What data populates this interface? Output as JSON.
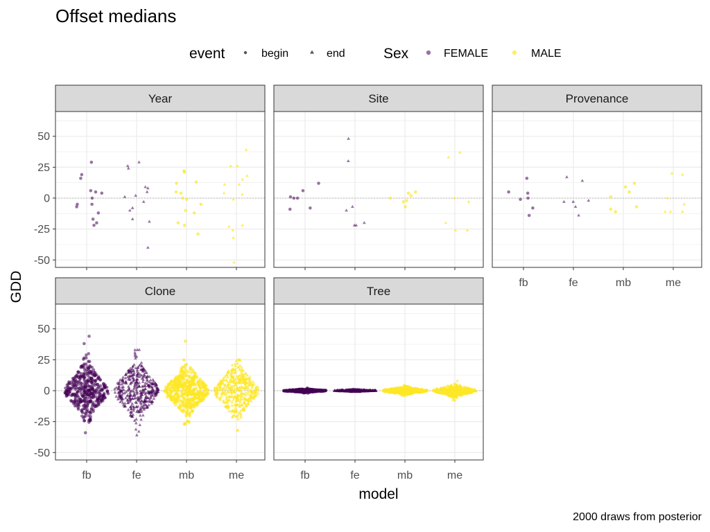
{
  "chart_data": {
    "type": "scatter",
    "title": "Offset medians",
    "xlabel": "model",
    "ylabel": "GDD",
    "caption": "2000 draws from posterior",
    "ylim": [
      -56,
      70
    ],
    "yticks": [
      -50,
      -25,
      0,
      25,
      50
    ],
    "yticklabels": [
      "-50",
      "-25",
      "0",
      "25",
      "50"
    ],
    "categories": [
      "fb",
      "fe",
      "mb",
      "me"
    ],
    "grid": true,
    "zero_line": "dotted",
    "legend": {
      "placement": "top",
      "event_title": "event",
      "event_items": [
        {
          "label": "begin",
          "shape": "circle"
        },
        {
          "label": "end",
          "shape": "triangle"
        }
      ],
      "sex_title": "Sex",
      "sex_items": [
        {
          "label": "FEMALE",
          "color": "#440154"
        },
        {
          "label": "MALE",
          "color": "#FDE725"
        }
      ]
    },
    "colors": {
      "FEMALE": "#440154",
      "MALE": "#FDE725"
    },
    "panels": [
      {
        "name": "Year",
        "values": {
          "fb": [
            29,
            16,
            6,
            4,
            0,
            -5,
            -7,
            -12,
            -17,
            -20,
            -22,
            19,
            5,
            -5
          ],
          "fe": [
            29,
            24,
            26,
            9,
            8,
            5,
            1,
            2,
            -3,
            -8,
            -10,
            -17,
            -19,
            -40
          ],
          "mb": [
            22,
            21,
            13,
            12,
            5,
            4,
            0,
            -1,
            -5,
            -10,
            -12,
            -20,
            -22,
            -29
          ],
          "me": [
            39,
            26,
            26,
            18,
            15,
            11,
            11,
            4,
            3,
            -1,
            -22,
            -23,
            -26,
            -32,
            -52
          ]
        }
      },
      {
        "name": "Site",
        "values": {
          "fb": [
            12,
            6,
            1,
            0,
            0,
            -8,
            -9
          ],
          "fe": [
            48,
            30,
            -7,
            -10,
            -20,
            -22,
            -22
          ],
          "mb": [
            5,
            4,
            2,
            0,
            -2,
            -3,
            -7
          ],
          "me": [
            37,
            33,
            0,
            -3,
            -20,
            -26,
            -26
          ]
        }
      },
      {
        "name": "Provenance",
        "values": {
          "fb": [
            16,
            5,
            4,
            0,
            -1,
            -8,
            -14
          ],
          "fe": [
            17,
            14,
            -2,
            -3,
            -3,
            -7,
            -14
          ],
          "mb": [
            12,
            9,
            5,
            1,
            -7,
            -9,
            -11
          ],
          "me": [
            20,
            19,
            0,
            -5,
            -11,
            -11,
            -11
          ]
        }
      },
      {
        "name": "Clone",
        "spread": {
          "fb": {
            "min": -34,
            "max": 44,
            "sd": 10
          },
          "fe": {
            "min": -36,
            "max": 33,
            "sd": 11
          },
          "mb": {
            "min": -27,
            "max": 40,
            "sd": 9
          },
          "me": {
            "min": -32,
            "max": 25,
            "sd": 10
          }
        }
      },
      {
        "name": "Tree",
        "spread": {
          "fb": {
            "min": -2,
            "max": 2,
            "sd": 0.6
          },
          "fe": {
            "min": -1,
            "max": 1,
            "sd": 0.4
          },
          "mb": {
            "min": -4,
            "max": 4,
            "sd": 1.3
          },
          "me": {
            "min": -8,
            "max": 8,
            "sd": 2.2
          }
        }
      }
    ]
  }
}
